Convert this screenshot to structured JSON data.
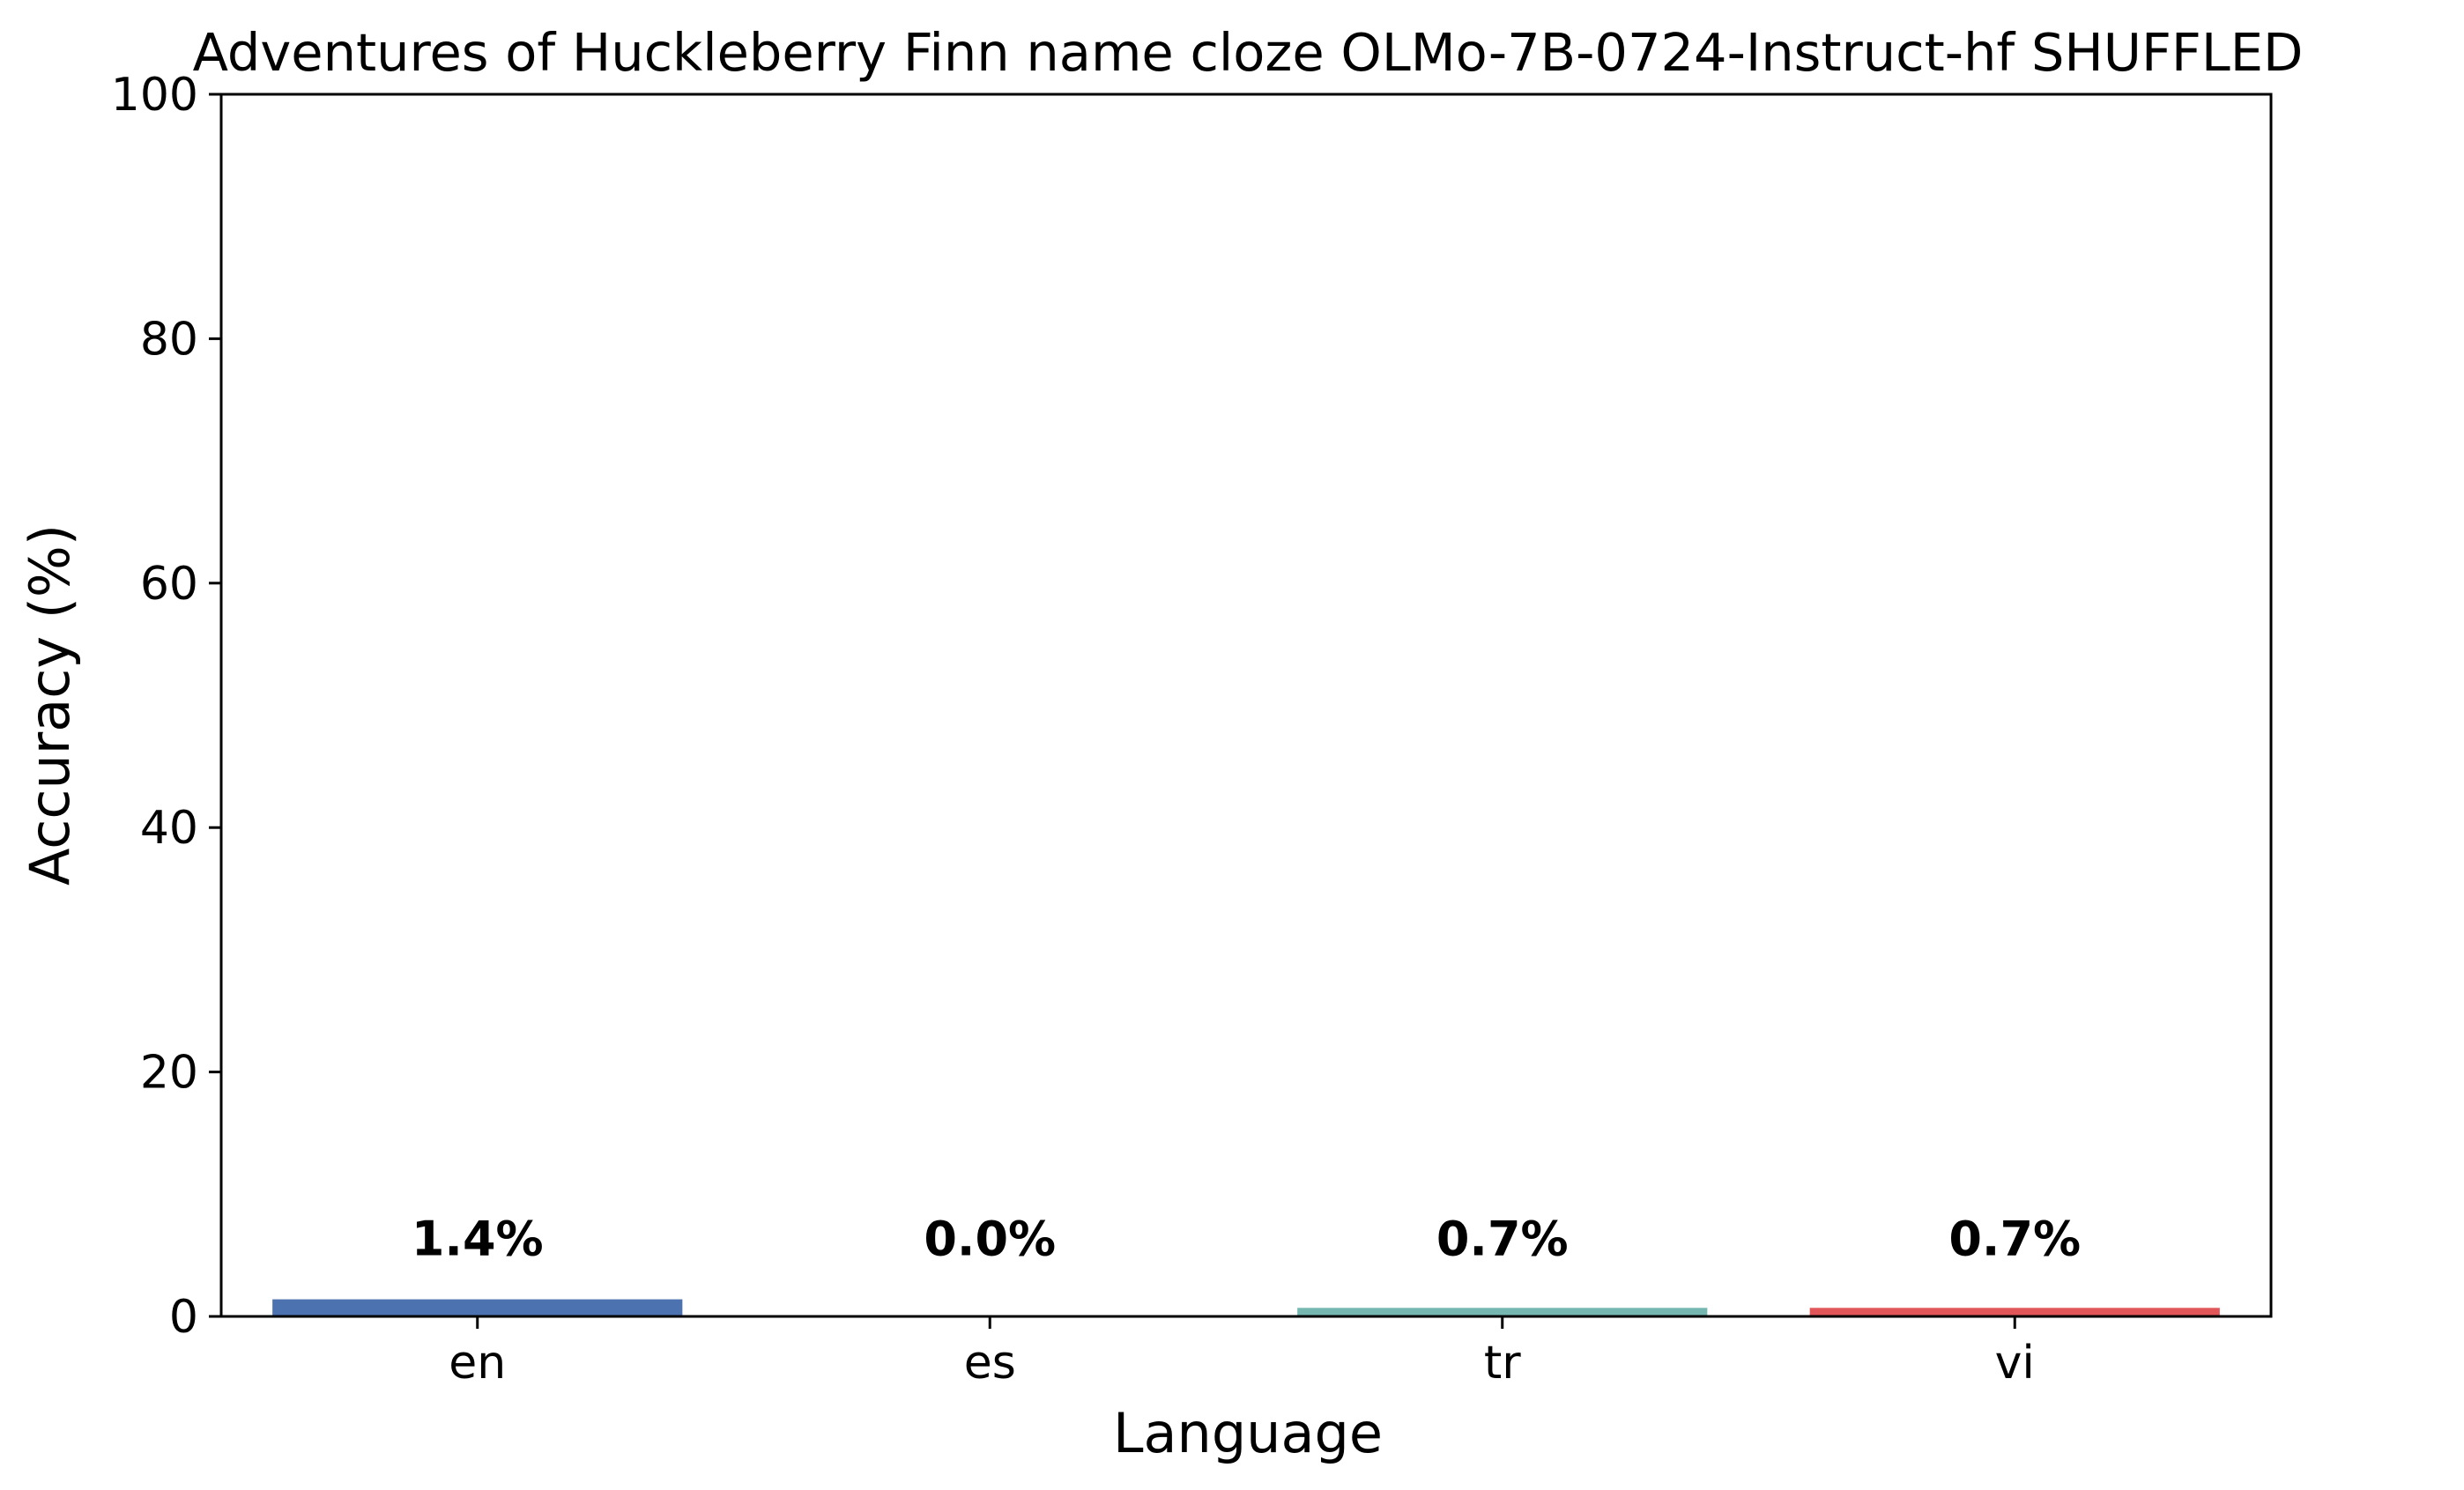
{
  "chart_data": {
    "type": "bar",
    "title": "Adventures of Huckleberry Finn name cloze OLMo-7B-0724-Instruct-hf SHUFFLED",
    "xlabel": "Language",
    "ylabel": "Accuracy (%)",
    "categories": [
      "en",
      "es",
      "tr",
      "vi"
    ],
    "values": [
      1.4,
      0.0,
      0.7,
      0.7
    ],
    "value_labels": [
      "1.4%",
      "0.0%",
      "0.7%",
      "0.7%"
    ],
    "colors": [
      "#4c72b0",
      "#dd8452",
      "#76b7b2",
      "#e15759"
    ],
    "ylim": [
      0,
      100
    ],
    "yticks": [
      0,
      20,
      40,
      60,
      80,
      100
    ],
    "ytick_labels": [
      "0",
      "20",
      "40",
      "60",
      "80",
      "100"
    ],
    "grid": false,
    "legend": "none"
  }
}
